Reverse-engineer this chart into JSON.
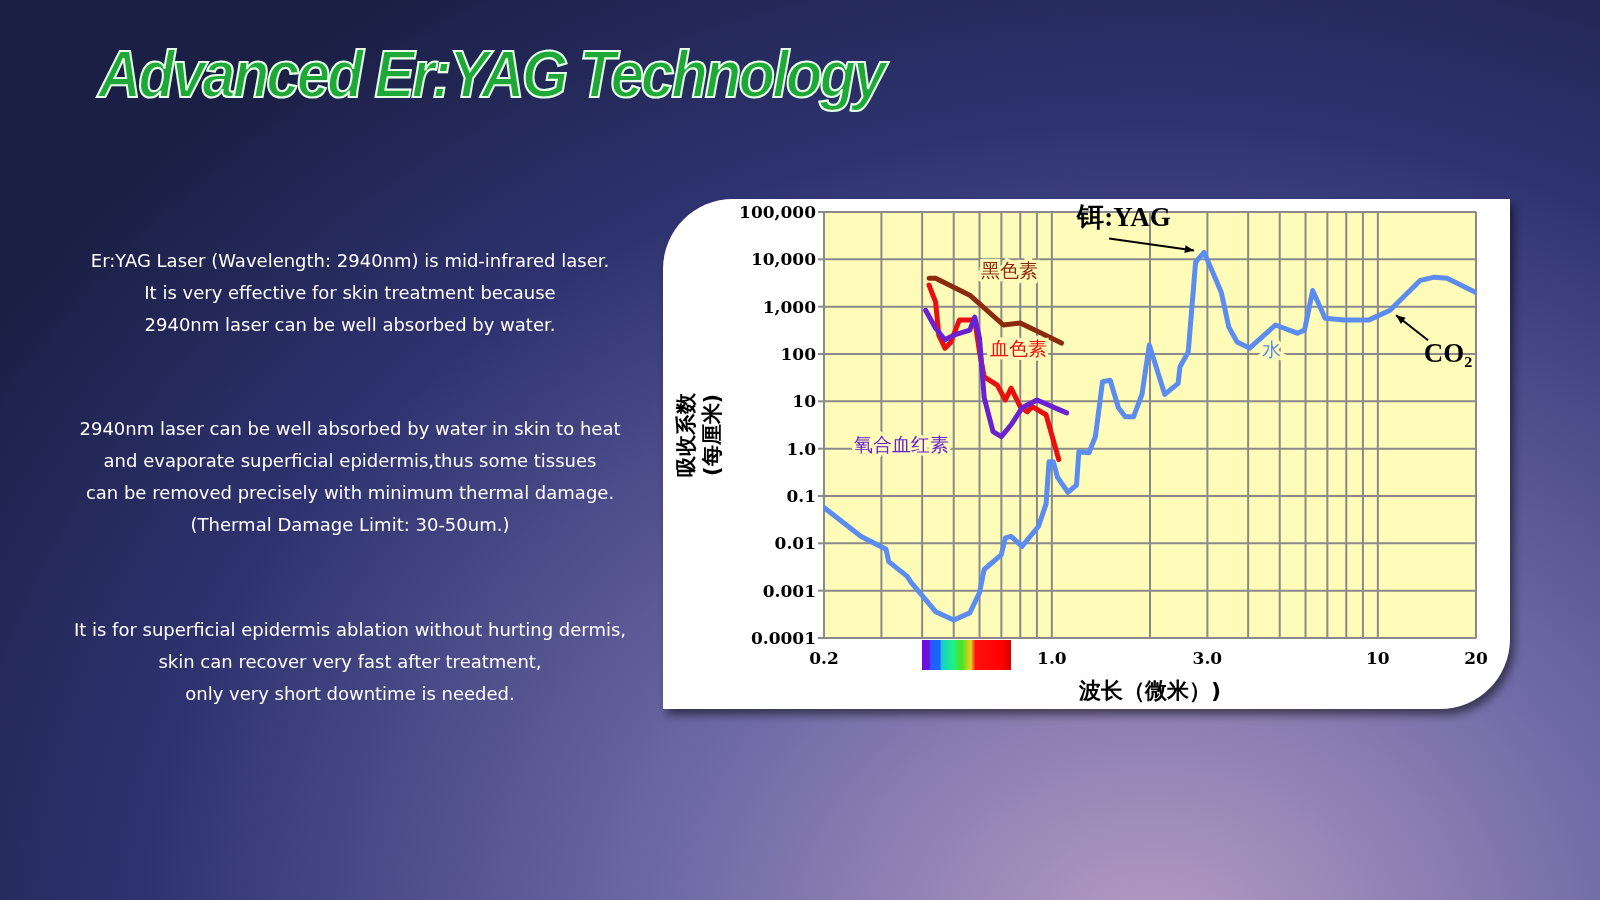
{
  "chart_data": {
    "type": "line",
    "title": "Advanced Er:YAG Technology",
    "xlabel": "波长（微米）)",
    "ylabel": "吸收系数\n(每厘米)",
    "log": "xy",
    "grid": true,
    "marker": "none",
    "line_style": "solid",
    "xlim": [
      0.2,
      20
    ],
    "xticks": [
      0.2,
      {
        "value": 0.3,
        "label": null
      },
      {
        "value": 0.4,
        "label": null
      },
      {
        "value": 0.5,
        "label": null
      },
      {
        "value": 0.6,
        "label": null
      },
      {
        "value": 0.7,
        "label": null
      },
      {
        "value": 0.8,
        "label": null
      },
      {
        "value": 0.9,
        "label": null
      },
      {
        "value": 1,
        "label": "1.0"
      },
      {
        "value": 2,
        "label": null
      },
      {
        "value": 3,
        "label": "3.0"
      },
      {
        "value": 4,
        "label": null
      },
      {
        "value": 5,
        "label": null
      },
      {
        "value": 6,
        "label": null
      },
      {
        "value": 7,
        "label": null
      },
      {
        "value": 8,
        "label": null
      },
      {
        "value": 9,
        "label": null
      },
      10,
      20
    ],
    "ylim": [
      0.0001,
      100000
    ],
    "yticks": [
      0.0001,
      0.001,
      0.01,
      0.1,
      {
        "value": 1,
        "label": "1.0"
      },
      10,
      100,
      {
        "value": 1000,
        "label": "1,000"
      },
      {
        "value": 10000,
        "label": "10,000"
      },
      {
        "value": 100000,
        "label": "100,000"
      }
    ],
    "series": [
      {
        "name": "水",
        "color": "#5b8cf0",
        "x": [
          0.2,
          0.26,
          0.31,
          0.316,
          0.36,
          0.37,
          0.44,
          0.5,
          0.56,
          0.6,
          0.62,
          0.7,
          0.72,
          0.75,
          0.81,
          0.91,
          0.96,
          0.98,
          1.01,
          1.04,
          1.12,
          1.19,
          1.21,
          1.3,
          1.36,
          1.43,
          1.51,
          1.6,
          1.68,
          1.78,
          1.89,
          1.99,
          2.22,
          2.44,
          2.47,
          2.62,
          2.76,
          2.93,
          3.08,
          3.31,
          3.49,
          3.7,
          4.04,
          4.85,
          5.66,
          5.96,
          6.31,
          6.89,
          7.86,
          9.37,
          10.9,
          13.5,
          14.9,
          16.3,
          20
        ],
        "values": [
          0.057,
          0.014,
          0.0075,
          0.0041,
          0.002,
          0.0015,
          0.00036,
          0.00024,
          0.00034,
          0.00091,
          0.0028,
          0.0058,
          0.013,
          0.014,
          0.0086,
          0.023,
          0.068,
          0.53,
          0.53,
          0.25,
          0.12,
          0.17,
          0.86,
          0.82,
          1.8,
          26,
          28,
          7.3,
          4.7,
          4.7,
          14,
          155,
          14,
          24,
          53,
          110,
          8700,
          14000,
          6400,
          2000,
          370,
          180,
          133,
          410,
          275,
          320,
          2200,
          570,
          520,
          520,
          840,
          3600,
          4200,
          4000,
          2000
        ]
      },
      {
        "name": "黑色素",
        "color": "#8b2a0c",
        "x": [
          0.42,
          0.44,
          0.56,
          0.71,
          0.8,
          1.07
        ],
        "values": [
          3980,
          4000,
          1750,
          410,
          450,
          170
        ]
      },
      {
        "name": "血色素",
        "color": "#e81010",
        "x": [
          0.42,
          0.44,
          0.45,
          0.47,
          0.49,
          0.52,
          0.58,
          0.6,
          0.62,
          0.68,
          0.72,
          0.75,
          0.8,
          0.84,
          0.87,
          0.96,
          1.05
        ],
        "values": [
          2850,
          1250,
          250,
          133,
          178,
          520,
          520,
          110,
          33,
          22,
          10.7,
          19,
          7.7,
          6,
          7.7,
          5.2,
          0.59
        ]
      },
      {
        "name": "氧合血红素",
        "color": "#6a22d0",
        "x": [
          0.41,
          0.44,
          0.47,
          0.5,
          0.56,
          0.58,
          0.6,
          0.62,
          0.66,
          0.7,
          0.75,
          0.81,
          0.9,
          1.11
        ],
        "values": [
          840,
          350,
          200,
          250,
          320,
          600,
          215,
          12,
          2.3,
          1.8,
          3.2,
          7.3,
          10.7,
          5.7
        ]
      }
    ],
    "annotations": [
      "Er:YAG Laser (Wavelength: 2940nm) is mid-infrared laser.\nIt is very effective for skin treatment because\n2940nm laser can be well absorbed by water.",
      "2940nm laser can be well absorbed by water in skin to heat\nand evaporate superficial epidermis,thus some tissues\ncan be removed precisely with minimum thermal damage.\n(Thermal Damage Limit: 30-50um.)",
      "It is for superficial epidermis ablation without hurting dermis,\nskin can recover very fast after treatment,\nonly very short downtime is needed.",
      {
        "text": "铒:YAG",
        "x": 2.93,
        "y": 14000
      },
      {
        "text": "CO₂",
        "x": 10.9,
        "y": 840
      }
    ]
  }
}
